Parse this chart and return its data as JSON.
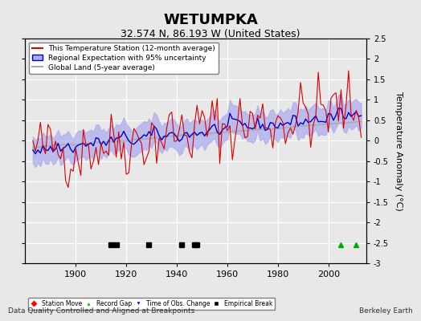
{
  "title": "WETUMPKA",
  "subtitle": "32.574 N, 86.193 W (United States)",
  "ylabel": "Temperature Anomaly (°C)",
  "footer_left": "Data Quality Controlled and Aligned at Breakpoints",
  "footer_right": "Berkeley Earth",
  "ylim": [
    -3.0,
    2.5
  ],
  "yticks": [
    -3,
    -2.5,
    -2,
    -1.5,
    -1,
    -0.5,
    0,
    0.5,
    1,
    1.5,
    2,
    2.5
  ],
  "xlim": [
    1880,
    2015
  ],
  "xticks": [
    1900,
    1920,
    1940,
    1960,
    1980,
    2000
  ],
  "start_year": 1883,
  "seed": 42,
  "empirical_breaks": [
    1914,
    1916,
    1929,
    1942,
    1947,
    1948
  ],
  "record_gaps": [
    2005,
    2011
  ],
  "background_color": "#e8e8e8",
  "plot_bg": "#e8e8e8",
  "grid_color": "#ffffff",
  "red_color": "#dd0000",
  "blue_color": "#0000cc",
  "blue_shade_color": "#aaaaee",
  "gray_color": "#aaaaaa",
  "legend_colors": {
    "red_line": "#dd0000",
    "blue_line": "#0000cc",
    "blue_shade": "#aaaaee",
    "gray_line": "#aaaaaa"
  }
}
